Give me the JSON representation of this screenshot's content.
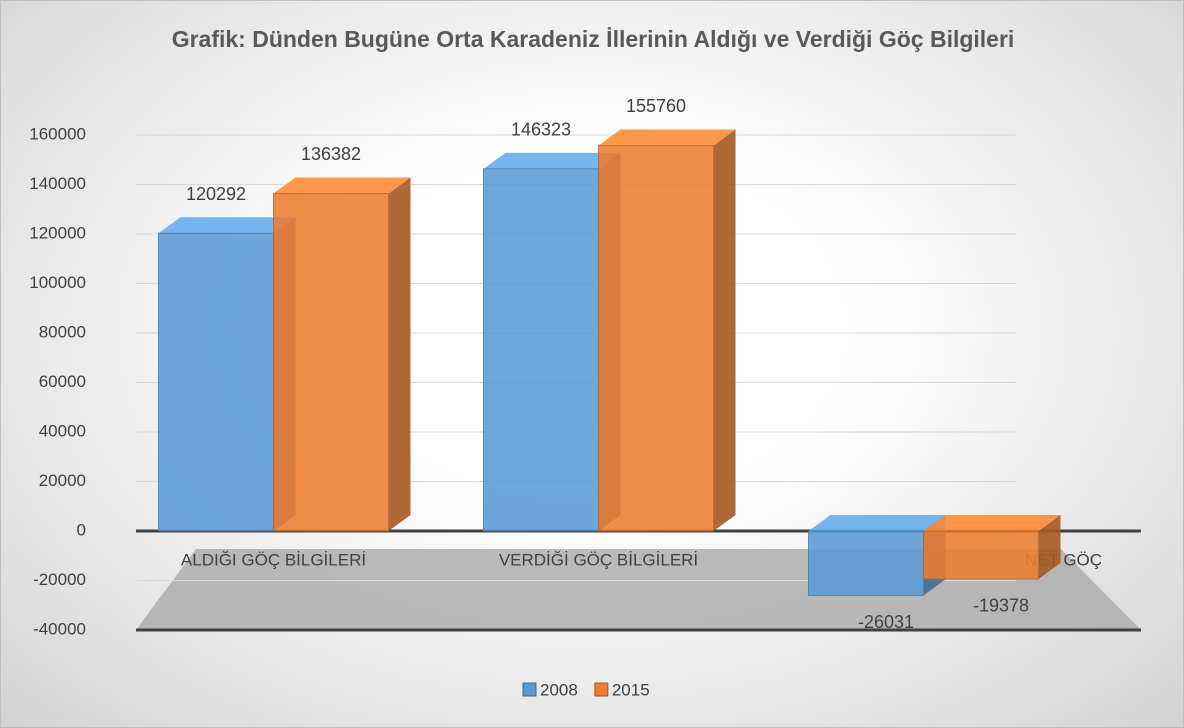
{
  "chart_data": {
    "type": "bar",
    "title": "Grafik: Dünden Bugüne Orta Karadeniz İllerinin Aldığı ve Verdiği Göç Bilgileri",
    "categories": [
      "ALDIĞI GÖÇ BİLGİLERİ",
      "VERDİĞİ GÖÇ BİLGİLERİ",
      "NET GÖÇ"
    ],
    "series": [
      {
        "name": "2008",
        "color": "#5b9bd5",
        "values": [
          120292,
          146323,
          -26031
        ]
      },
      {
        "name": "2015",
        "color": "#ed7d31",
        "values": [
          136382,
          155760,
          -19378
        ]
      }
    ],
    "ylim": [
      -40000,
      160000
    ],
    "yticks": [
      -40000,
      -20000,
      0,
      20000,
      40000,
      60000,
      80000,
      100000,
      120000,
      140000,
      160000
    ],
    "grid": true,
    "legend": "bottom"
  }
}
